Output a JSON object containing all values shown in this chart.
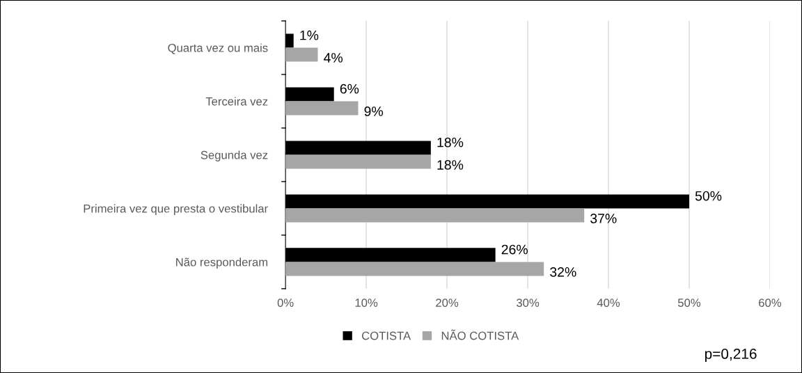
{
  "chart_data": {
    "type": "bar",
    "orientation": "horizontal",
    "categories": [
      "Quarta vez ou mais",
      "Terceira vez",
      "Segunda vez",
      "Primeira vez que presta o vestibular",
      "Não responderam"
    ],
    "series": [
      {
        "name": "COTISTA",
        "color": "#000000",
        "values": [
          1,
          6,
          18,
          50,
          26
        ],
        "value_labels": [
          "1%",
          "6%",
          "18%",
          "50%",
          "26%"
        ]
      },
      {
        "name": "NÃO COTISTA",
        "color": "#a6a6a6",
        "values": [
          4,
          9,
          18,
          37,
          32
        ],
        "value_labels": [
          "4%",
          "9%",
          "18%",
          "37%",
          "32%"
        ]
      }
    ],
    "xlim": [
      0,
      60
    ],
    "xticks": [
      {
        "value": 0,
        "label": "0%"
      },
      {
        "value": 10,
        "label": "10%"
      },
      {
        "value": 20,
        "label": "20%"
      },
      {
        "value": 30,
        "label": "30%"
      },
      {
        "value": 40,
        "label": "40%"
      },
      {
        "value": 50,
        "label": "50%"
      },
      {
        "value": 60,
        "label": "60%"
      }
    ],
    "grid": "x",
    "legend": "bottom",
    "annotations": [
      "p=0,216"
    ]
  }
}
